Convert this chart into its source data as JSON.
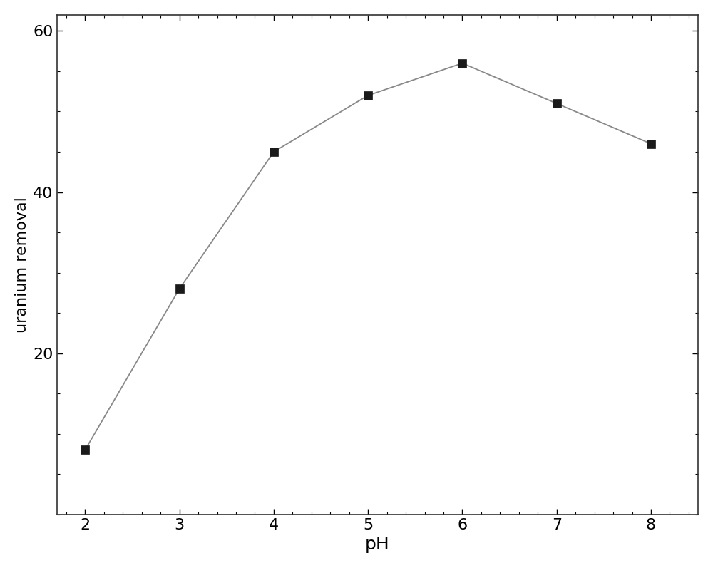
{
  "x": [
    2,
    3,
    4,
    5,
    6,
    7,
    8
  ],
  "y": [
    8,
    28,
    45,
    52,
    56,
    51,
    46
  ],
  "xlabel": "pH",
  "ylabel": "uranium removal",
  "xlim": [
    1.7,
    8.5
  ],
  "ylim": [
    0,
    62
  ],
  "xticks": [
    2,
    3,
    4,
    5,
    6,
    7,
    8
  ],
  "yticks": [
    20,
    40,
    60
  ],
  "line_color": "#888888",
  "marker_color": "#1a1a1a",
  "marker": "s",
  "marker_size": 8,
  "line_width": 1.3,
  "xlabel_fontsize": 18,
  "ylabel_fontsize": 16,
  "tick_fontsize": 16,
  "background_color": "#ffffff",
  "figure_color": "#ffffff"
}
